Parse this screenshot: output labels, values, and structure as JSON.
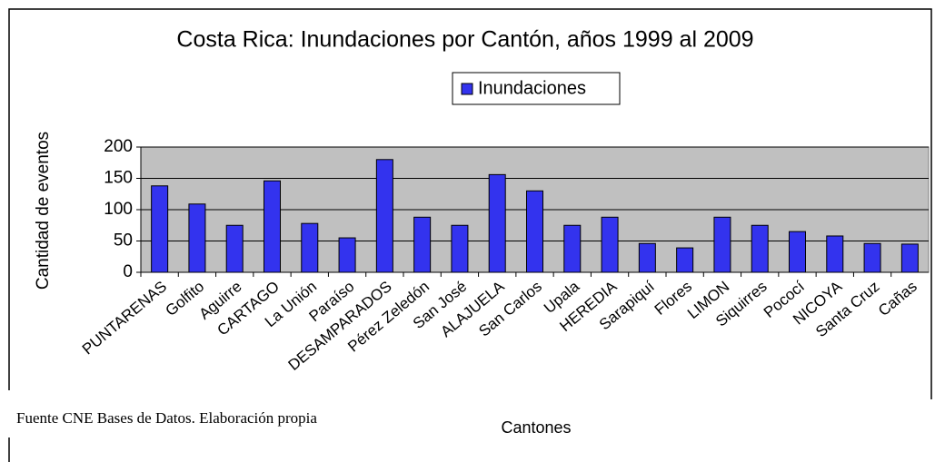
{
  "chart_data": {
    "type": "bar",
    "title": "Costa Rica: Inundaciones por Cantón, años 1999 al 2009",
    "x_label": "Cantones",
    "y_label": "Cantidad de eventos",
    "note": "Fuente CNE Bases de Datos. Elaboración propia",
    "categories": [
      "PUNTARENAS",
      "Golfito",
      "Aguirre",
      "CARTAGO",
      "La Unión",
      "Paraíso",
      "DESAMPARADOS",
      "Pérez Zeledón",
      "San José",
      "ALAJUELA",
      "San Carlos",
      "Upala",
      "HEREDIA",
      "Sarapiquí",
      "Flores",
      "LIMON",
      "Siquirres",
      "Pococí",
      "NICOYA",
      "Santa Cruz",
      "Cañas"
    ],
    "series": [
      {
        "name": "Inundaciones",
        "color": "#3333ee",
        "values": [
          138,
          109,
          75,
          146,
          78,
          55,
          180,
          88,
          75,
          156,
          130,
          75,
          88,
          46,
          39,
          88,
          75,
          65,
          58,
          46,
          45
        ]
      }
    ],
    "ylim": [
      0,
      200
    ],
    "yticks": [
      0,
      50,
      100,
      150,
      200
    ],
    "grid": true,
    "legend": "top"
  }
}
